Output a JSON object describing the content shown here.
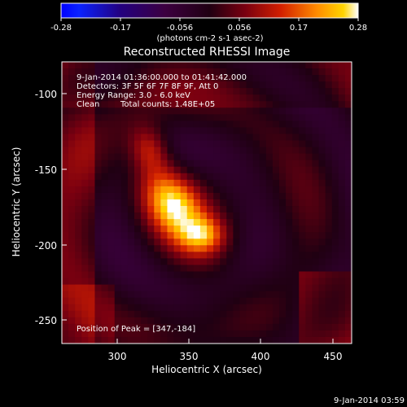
{
  "chart_data": {
    "type": "heatmap",
    "title": "Reconstructed RHESSI Image",
    "xlabel": "Heliocentric X (arcsec)",
    "ylabel": "Heliocentric Y (arcsec)",
    "xlim": [
      264,
      456
    ],
    "ylim": [
      -270,
      -78
    ],
    "xticks": [
      "300",
      "350",
      "400",
      "450"
    ],
    "yticks": [
      "-100",
      "-150",
      "-200",
      "-250"
    ],
    "colorbar": {
      "ticks": [
        "-0.28",
        "-0.17",
        "-0.056",
        "0.056",
        "0.17",
        "0.28"
      ],
      "range": [
        -0.28,
        0.28
      ],
      "unit_label": "(photons cm-2 s-1 asec-2)"
    },
    "annotations": [
      "9-Jan-2014 01:36:00.000 to 01:41:42.000",
      "Detectors: 3F 5F 6F 7F 8F 9F, Att 0",
      "Energy Range: 3.0 - 6.0 keV",
      "Clean",
      "Total counts: 1.48E+05"
    ],
    "peak_label": "Position of Peak = [347,-184]",
    "peak": [
      347,
      -184
    ],
    "sources": [
      {
        "x": 340,
        "y": -178,
        "sx": 12,
        "sy": 20,
        "rot": 35,
        "amp": 0.28
      },
      {
        "x": 322,
        "y": -138,
        "sx": 9,
        "sy": 12,
        "rot": 20,
        "amp": 0.14
      },
      {
        "x": 358,
        "y": -196,
        "sx": 10,
        "sy": 8,
        "rot": 0,
        "amp": 0.12
      }
    ],
    "ring_pattern": "concentric ringing around the main source with faint purple minima and red/orange edges"
  },
  "footer": {
    "timestamp": "9-Jan-2014 03:59"
  }
}
